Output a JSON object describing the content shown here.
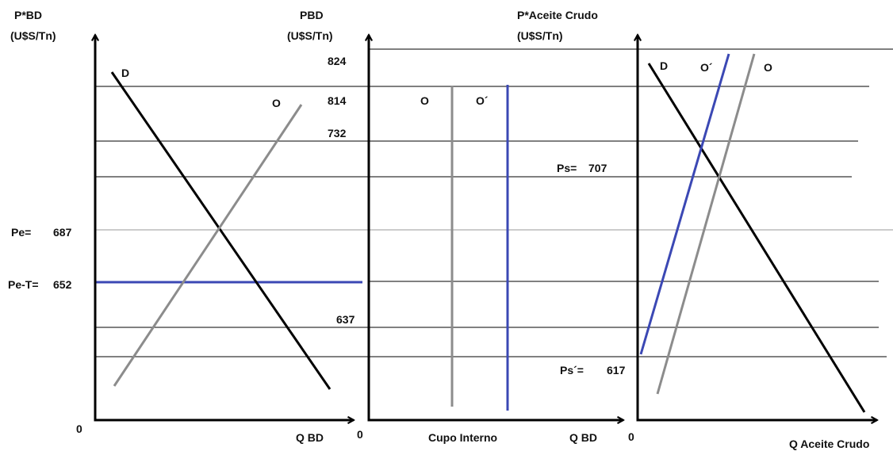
{
  "colors": {
    "demand": "#000000",
    "supply": "#8c8c8c",
    "supply_shifted": "#3b48b4",
    "tax_line": "#3b48b4",
    "guide_line": "#000000",
    "axis": "#000000"
  },
  "panel_left": {
    "y_axis_label_line1": "P*BD",
    "y_axis_label_line2": "(U$S/Tn)",
    "x_axis_label": "Q BD",
    "origin": "0",
    "demand_label": "D",
    "supply_label": "O",
    "price_labels": {
      "pe": "Pe=",
      "pe_value": "687",
      "pe_t": "Pe-T=",
      "pe_t_value": "652"
    }
  },
  "panel_middle": {
    "y_axis_label_line1": "PBD",
    "y_axis_label_line2": "(U$S/Tn)",
    "x_axis_label": "Q BD",
    "x_axis_sublabel": "Cupo Interno",
    "origin": "0",
    "supply_label": "O",
    "supply_shifted_label": "O´",
    "tick_values": [
      "824",
      "814",
      "732",
      "637"
    ]
  },
  "panel_right": {
    "y_axis_label_line1": "P*Aceite Crudo",
    "y_axis_label_line2": "(U$S/Tn)",
    "x_axis_label": "Q Aceite Crudo",
    "origin": "0",
    "demand_label": "D",
    "supply_label": "O",
    "supply_shifted_label": "O´",
    "price_labels": {
      "ps": "Ps=",
      "ps_value": "707",
      "ps_prime": "Ps´=",
      "ps_prime_value": "617"
    }
  }
}
